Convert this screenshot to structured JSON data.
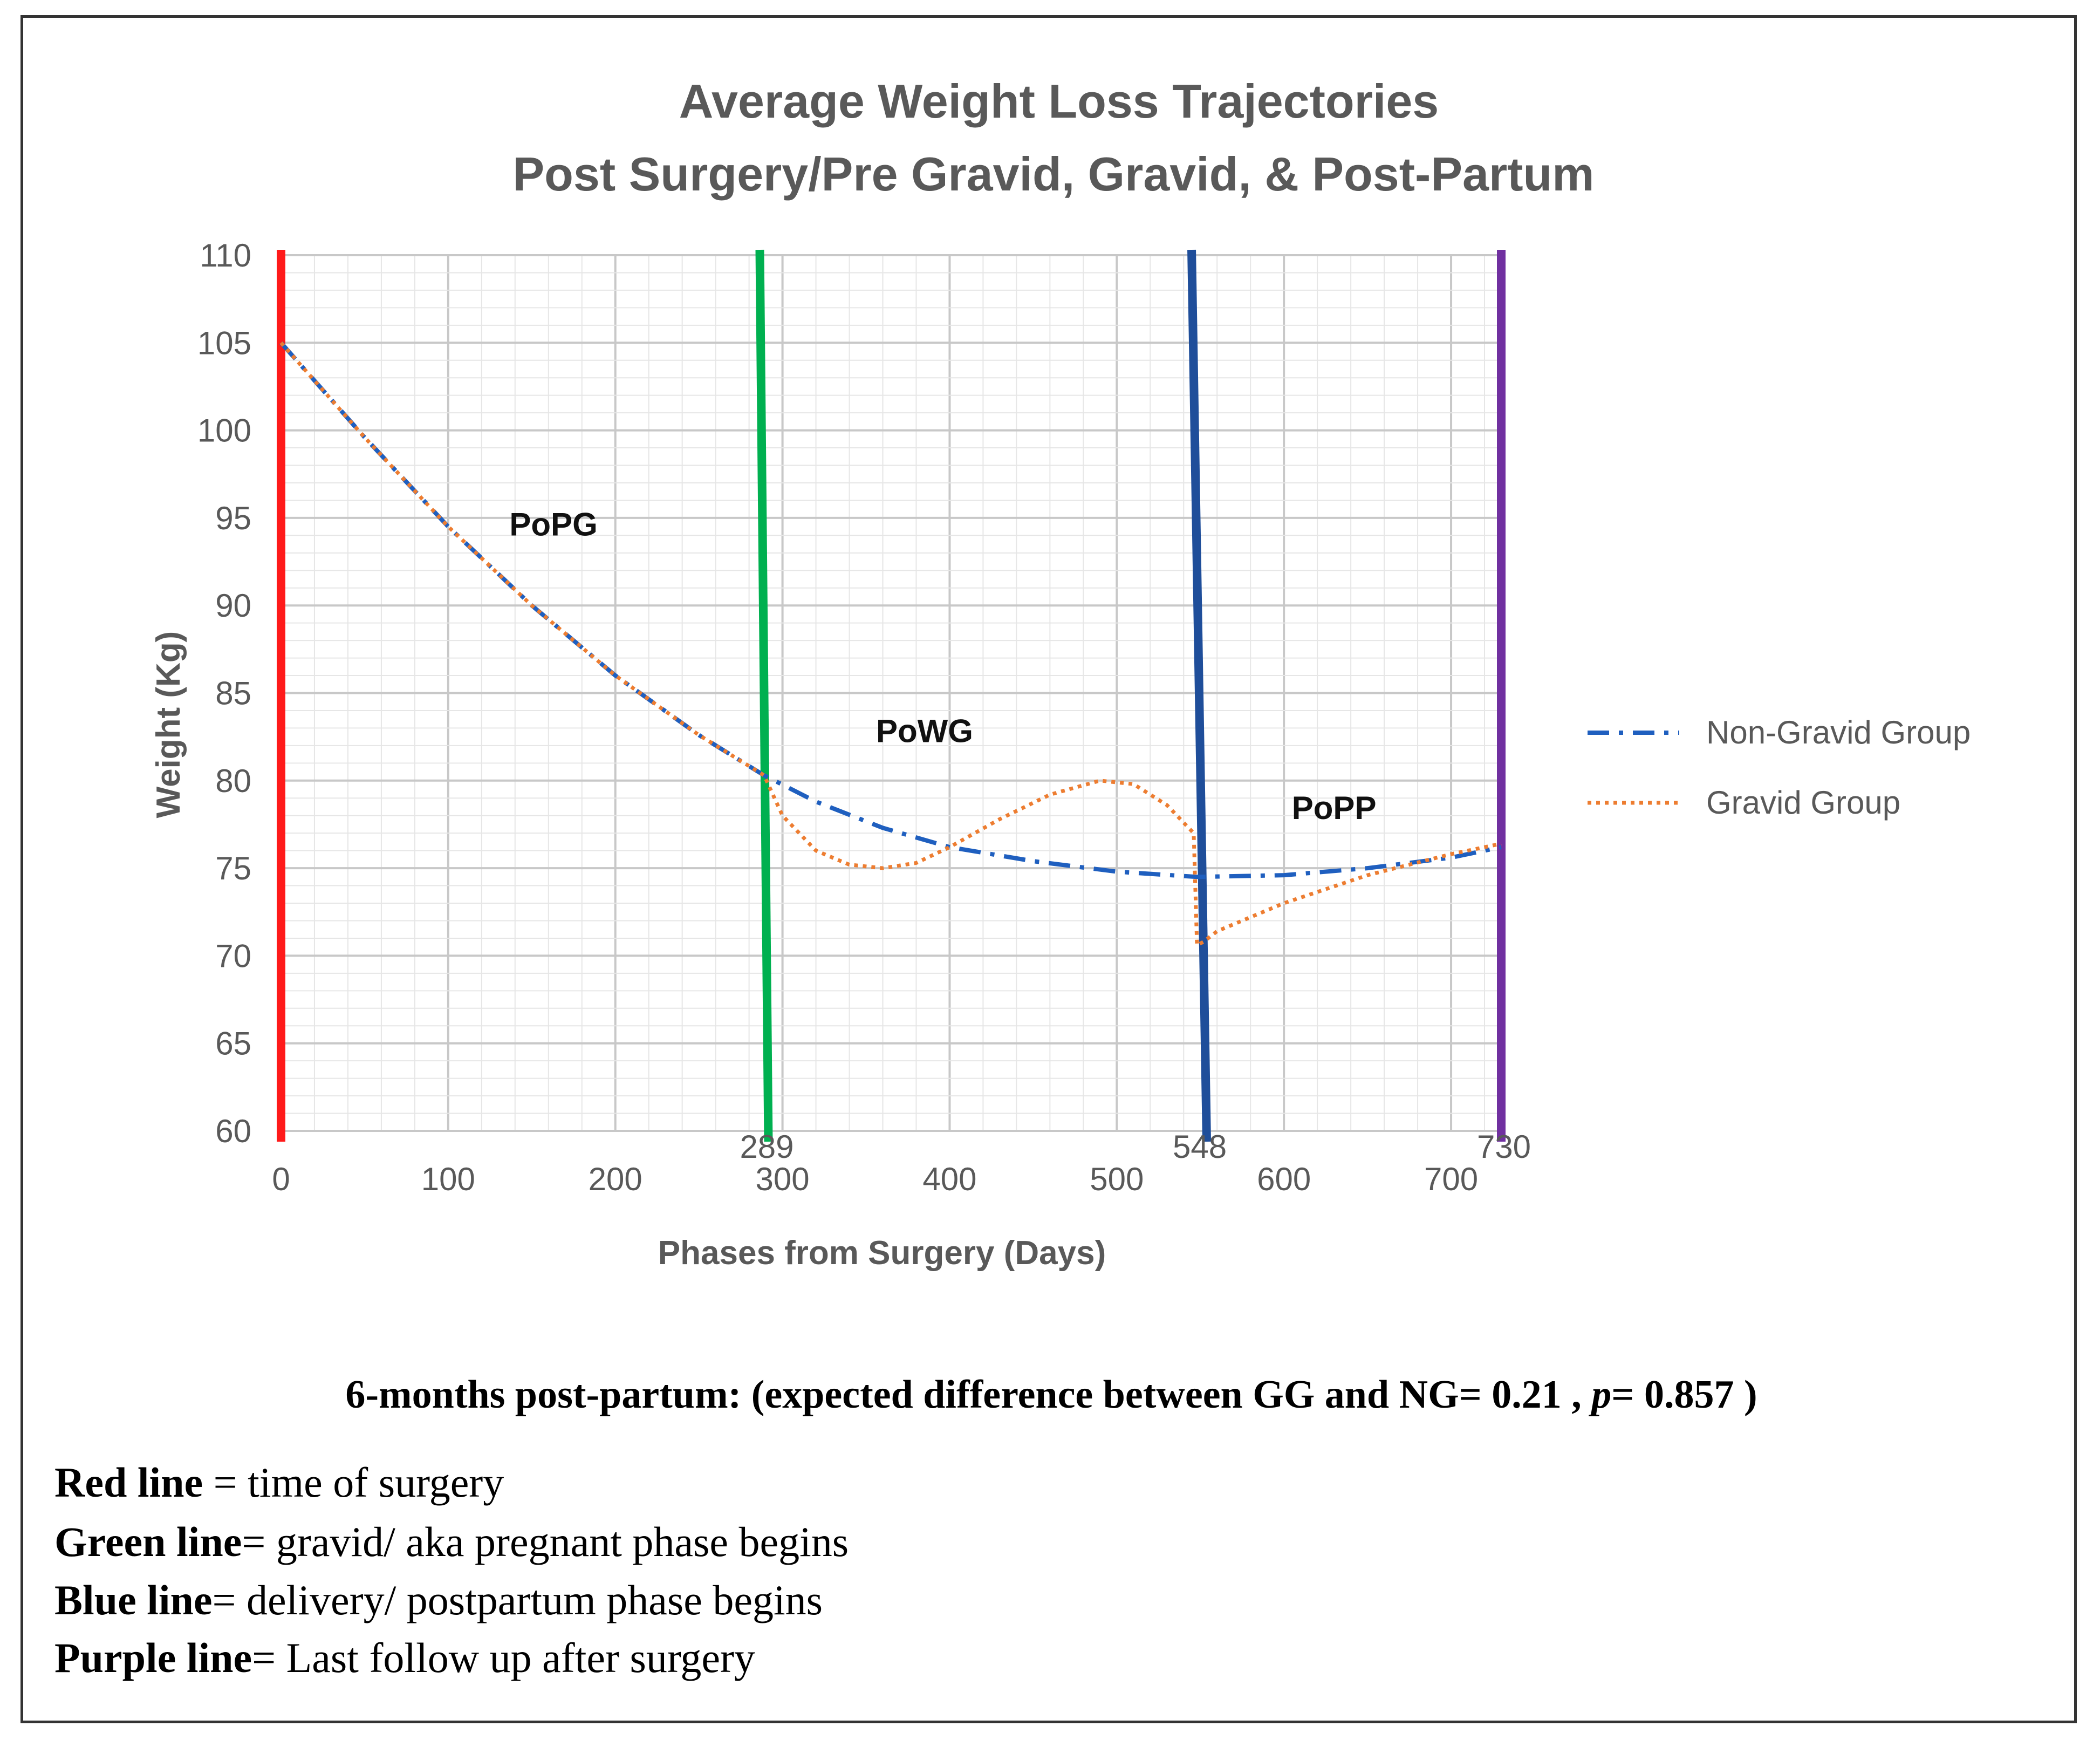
{
  "chart_data": {
    "type": "line",
    "title_lines": [
      "Average Weight Loss Trajectories",
      "Post Surgery/Pre Gravid, Gravid, & Post-Partum"
    ],
    "xlabel": "Phases from Surgery (Days)",
    "ylabel": "Weight (Kg)",
    "xlim": [
      0,
      730
    ],
    "ylim": [
      60,
      110
    ],
    "x_ticks": [
      0,
      100,
      200,
      300,
      400,
      500,
      600,
      700
    ],
    "x_tick_labels": [
      "0",
      "100",
      "200",
      "300",
      "400",
      "500",
      "600",
      "700"
    ],
    "y_ticks": [
      60,
      65,
      70,
      75,
      80,
      85,
      90,
      95,
      100,
      105,
      110
    ],
    "y_tick_labels": [
      "60",
      "65",
      "70",
      "75",
      "80",
      "85",
      "90",
      "95",
      "100",
      "105",
      "110"
    ],
    "grid": true,
    "legend_position": "right",
    "series": [
      {
        "name": "Non-Gravid Group",
        "color": "#1f5fbf",
        "style": "dash-dot",
        "x": [
          0,
          50,
          100,
          150,
          200,
          250,
          289,
          320,
          360,
          400,
          450,
          500,
          548,
          600,
          650,
          700,
          730
        ],
        "y": [
          105,
          99.6,
          94.5,
          90,
          86,
          82.6,
          80.3,
          78.8,
          77.3,
          76.2,
          75.4,
          74.8,
          74.5,
          74.6,
          75,
          75.6,
          76.2
        ]
      },
      {
        "name": "Gravid Group",
        "color": "#ed7d31",
        "style": "dotted",
        "x": [
          0,
          50,
          100,
          150,
          200,
          250,
          289,
          300,
          320,
          340,
          360,
          380,
          400,
          430,
          460,
          490,
          510,
          530,
          546,
          548,
          552,
          560,
          600,
          650,
          700,
          730
        ],
        "y": [
          105,
          99.6,
          94.5,
          90,
          86,
          82.6,
          80.3,
          78,
          76,
          75.2,
          75,
          75.3,
          76.2,
          77.8,
          79.2,
          80,
          79.8,
          78.6,
          77,
          70.6,
          70.8,
          71.4,
          73,
          74.6,
          75.8,
          76.4
        ]
      }
    ],
    "phase_lines": [
      {
        "x": 0,
        "color": "#ff1a1a",
        "label": ""
      },
      {
        "x": 289,
        "color": "#00b050",
        "label": "289"
      },
      {
        "x": 548,
        "color": "#1f4e9a",
        "label": "548"
      },
      {
        "x": 730,
        "color": "#7030a0",
        "label": "730"
      }
    ],
    "phase_labels": [
      {
        "text": "PoPG",
        "x": 163,
        "y": 94
      },
      {
        "text": "PoWG",
        "x": 385,
        "y": 82.2
      },
      {
        "text": "PoPP",
        "x": 630,
        "y": 77.8
      }
    ]
  },
  "stat": {
    "prefix": "6-months post-partum: (expected difference between GG and NG= 0.21 , ",
    "p_symbol": "p",
    "suffix": "= 0.857 )"
  },
  "notes": [
    {
      "bold": "Red line",
      "text": " = time of surgery"
    },
    {
      "bold": "Green line",
      "text": "= gravid/ aka pregnant phase begins"
    },
    {
      "bold": "Blue line",
      "text": "= delivery/ postpartum phase begins"
    },
    {
      "bold": "Purple line",
      "text": "= Last follow up after surgery"
    }
  ]
}
